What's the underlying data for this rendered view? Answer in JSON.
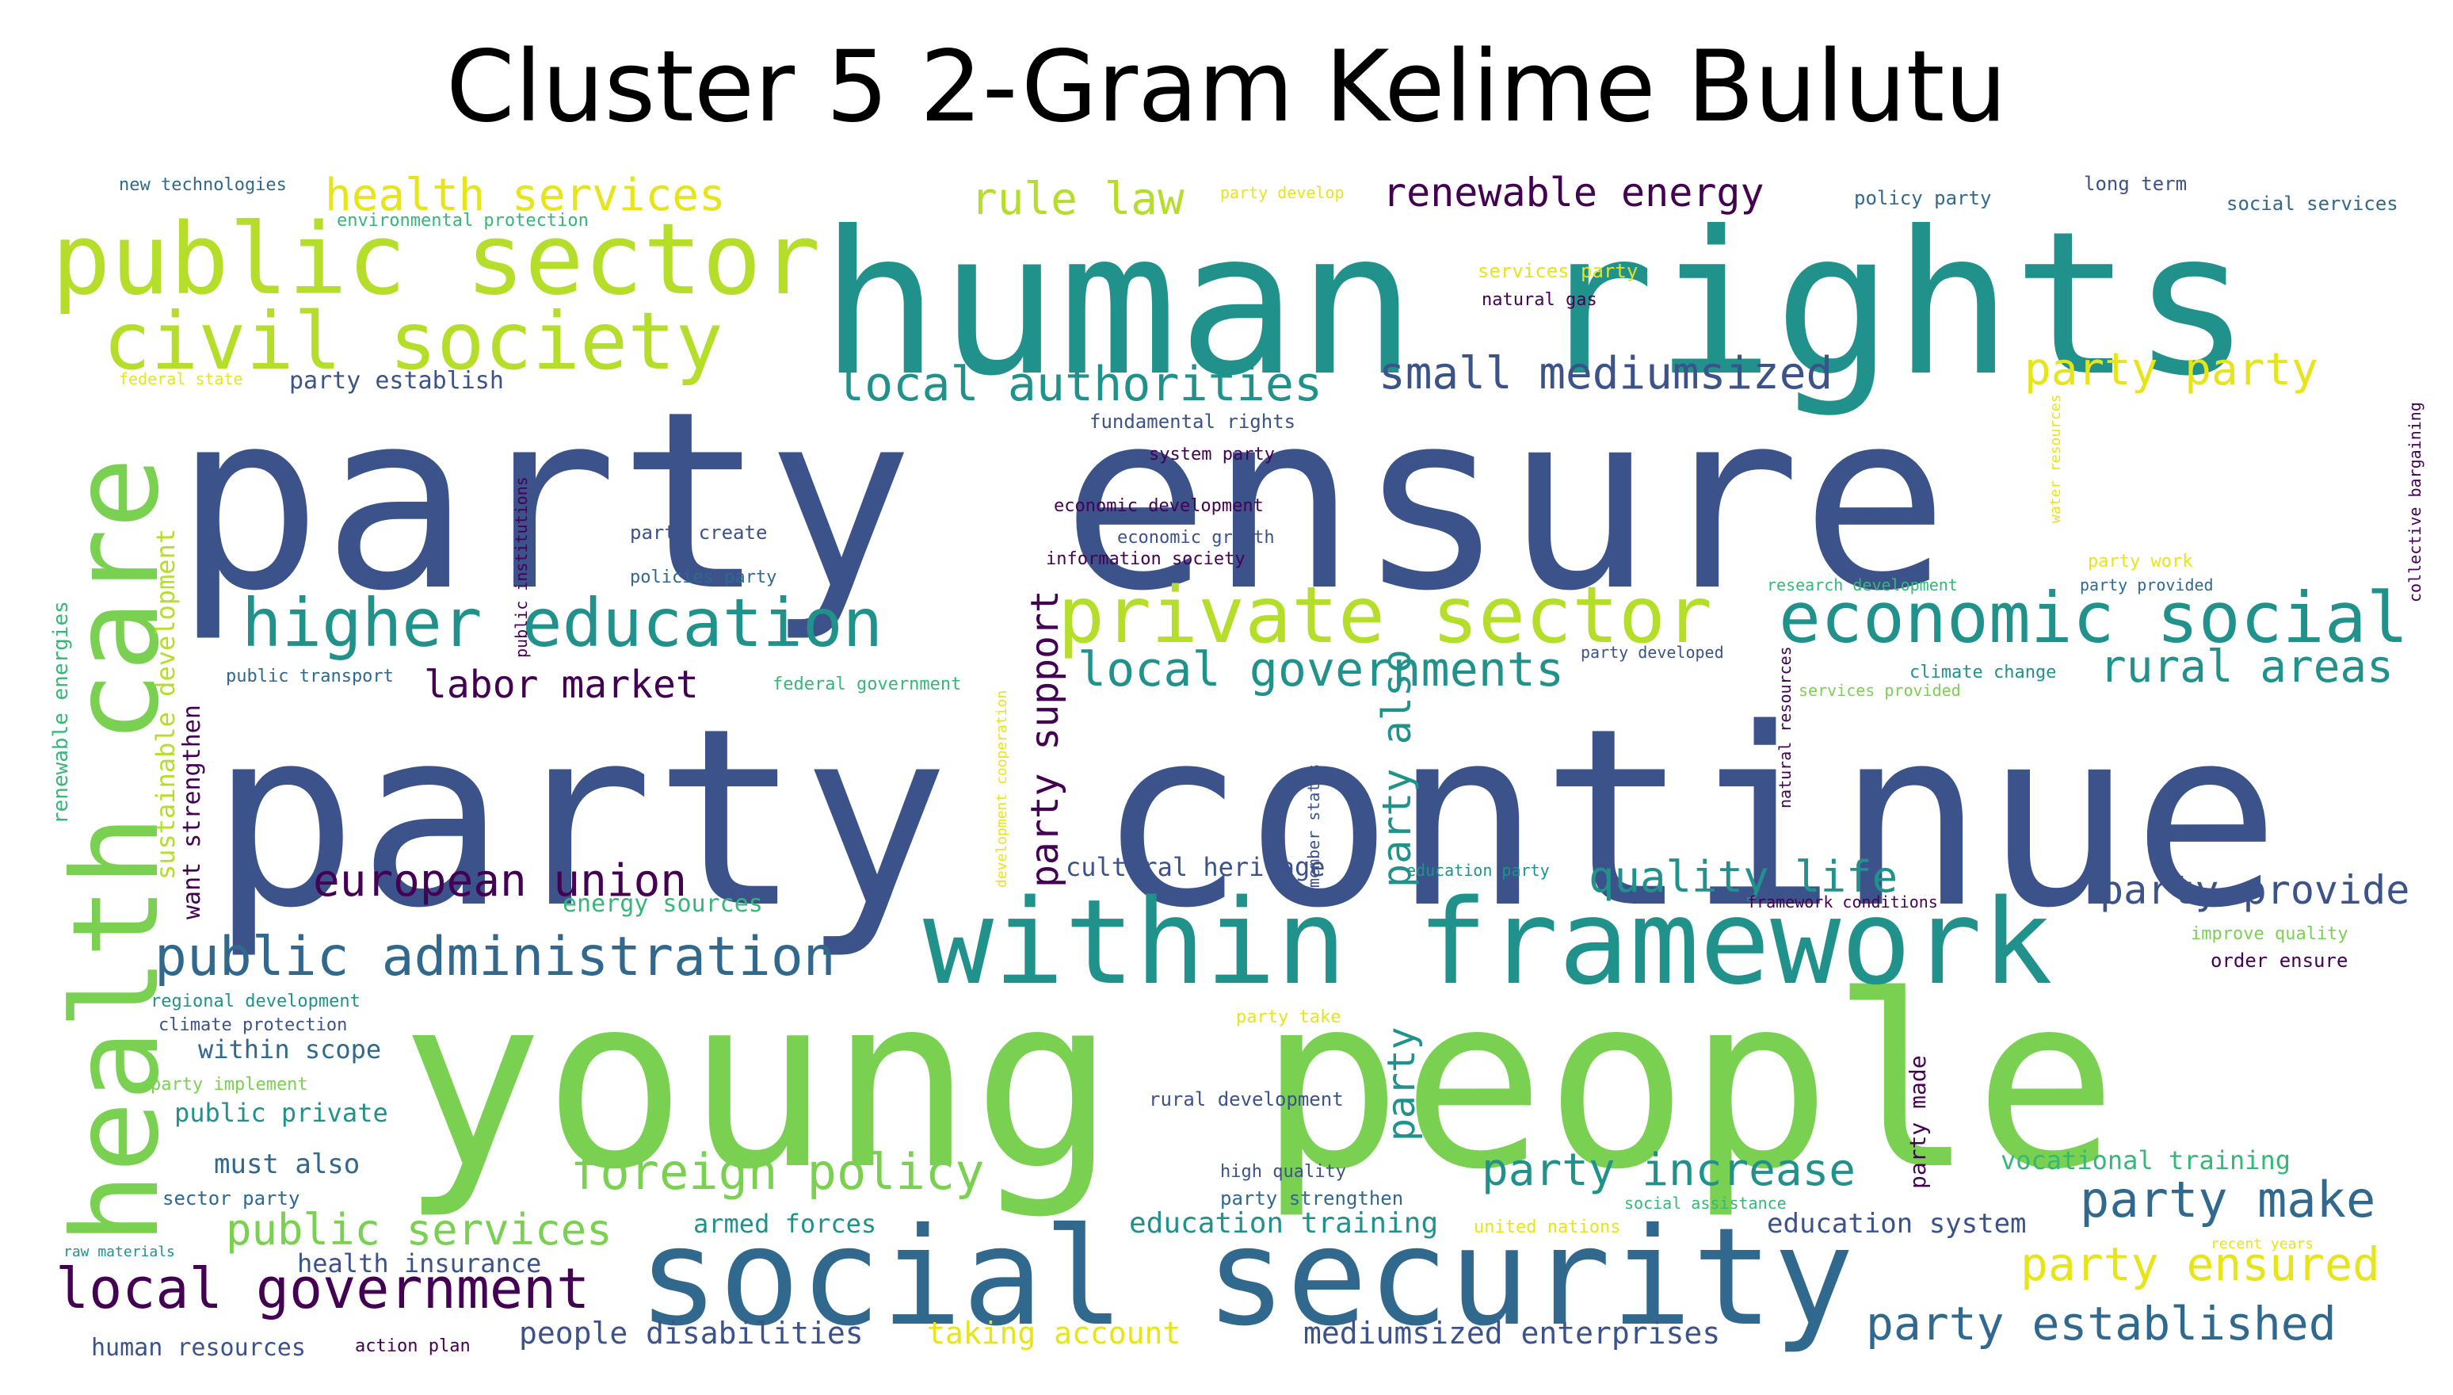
{
  "title": "Cluster 5 2-Gram Kelime Bulutu",
  "palette": {
    "dark_purple": "#440154",
    "indigo": "#3b528b",
    "blue": "#31688e",
    "teal": "#21918c",
    "green_teal": "#35b779",
    "green": "#7ad151",
    "lime": "#b5de2b",
    "yellow": "#e7e419"
  },
  "words": [
    {
      "text": "party ensure",
      "color": "indigo"
    },
    {
      "text": "party continue",
      "color": "indigo"
    },
    {
      "text": "young people",
      "color": "green"
    },
    {
      "text": "human rights",
      "color": "teal"
    },
    {
      "text": "within framework",
      "color": "teal"
    },
    {
      "text": "social security",
      "color": "blue"
    },
    {
      "text": "health care",
      "color": "green"
    },
    {
      "text": "public sector",
      "color": "lime"
    },
    {
      "text": "civil society",
      "color": "lime"
    },
    {
      "text": "private sector",
      "color": "lime"
    },
    {
      "text": "economic social",
      "color": "teal"
    },
    {
      "text": "higher education",
      "color": "teal"
    },
    {
      "text": "public administration",
      "color": "blue"
    },
    {
      "text": "local authorities",
      "color": "teal"
    },
    {
      "text": "local governments",
      "color": "teal"
    },
    {
      "text": "local government",
      "color": "dark_purple"
    },
    {
      "text": "foreign policy",
      "color": "green"
    },
    {
      "text": "renewable energy",
      "color": "dark_purple"
    },
    {
      "text": "small mediumsized",
      "color": "indigo"
    },
    {
      "text": "health services",
      "color": "yellow"
    },
    {
      "text": "rule law",
      "color": "lime"
    },
    {
      "text": "party party",
      "color": "yellow"
    },
    {
      "text": "european union",
      "color": "dark_purple"
    },
    {
      "text": "quality life",
      "color": "teal"
    },
    {
      "text": "party provide",
      "color": "indigo"
    },
    {
      "text": "party increase",
      "color": "teal"
    },
    {
      "text": "party make",
      "color": "blue"
    },
    {
      "text": "party ensured",
      "color": "yellow"
    },
    {
      "text": "party established",
      "color": "blue"
    },
    {
      "text": "rural areas",
      "color": "teal"
    },
    {
      "text": "labor market",
      "color": "dark_purple"
    },
    {
      "text": "public services",
      "color": "green"
    },
    {
      "text": "party support",
      "color": "dark_purple"
    },
    {
      "text": "party also",
      "color": "teal"
    },
    {
      "text": "party",
      "color": "teal"
    },
    {
      "text": "cultural heritage",
      "color": "indigo"
    },
    {
      "text": "sustainable development",
      "color": "lime"
    },
    {
      "text": "want strengthen",
      "color": "dark_purple"
    },
    {
      "text": "renewable energies",
      "color": "green_teal"
    },
    {
      "text": "party made",
      "color": "dark_purple"
    },
    {
      "text": "party establish",
      "color": "indigo"
    },
    {
      "text": "education training",
      "color": "teal"
    },
    {
      "text": "education system",
      "color": "indigo"
    },
    {
      "text": "vocational training",
      "color": "green_teal"
    },
    {
      "text": "armed forces",
      "color": "teal"
    },
    {
      "text": "health insurance",
      "color": "indigo"
    },
    {
      "text": "human resources",
      "color": "indigo"
    },
    {
      "text": "people disabilities",
      "color": "indigo"
    },
    {
      "text": "taking account",
      "color": "yellow"
    },
    {
      "text": "mediumsized enterprises",
      "color": "indigo"
    },
    {
      "text": "must also",
      "color": "blue"
    },
    {
      "text": "within scope",
      "color": "blue"
    },
    {
      "text": "public private",
      "color": "teal"
    },
    {
      "text": "energy sources",
      "color": "green_teal"
    },
    {
      "text": "new technologies",
      "color": "blue"
    },
    {
      "text": "environmental protection",
      "color": "green_teal"
    },
    {
      "text": "federal state",
      "color": "yellow"
    },
    {
      "text": "party develop",
      "color": "yellow"
    },
    {
      "text": "policy party",
      "color": "blue"
    },
    {
      "text": "long term",
      "color": "indigo"
    },
    {
      "text": "social services",
      "color": "blue"
    },
    {
      "text": "services party",
      "color": "yellow"
    },
    {
      "text": "natural gas",
      "color": "dark_purple"
    },
    {
      "text": "fundamental rights",
      "color": "indigo"
    },
    {
      "text": "system party",
      "color": "dark_purple"
    },
    {
      "text": "economic development",
      "color": "dark_purple"
    },
    {
      "text": "party create",
      "color": "indigo"
    },
    {
      "text": "economic growth",
      "color": "indigo"
    },
    {
      "text": "information society",
      "color": "dark_purple"
    },
    {
      "text": "policies party",
      "color": "blue"
    },
    {
      "text": "public institutions",
      "color": "dark_purple"
    },
    {
      "text": "party work",
      "color": "yellow"
    },
    {
      "text": "party provided",
      "color": "blue"
    },
    {
      "text": "research development",
      "color": "green_teal"
    },
    {
      "text": "collective bargaining",
      "color": "dark_purple"
    },
    {
      "text": "water resources",
      "color": "yellow"
    },
    {
      "text": "party developed",
      "color": "indigo"
    },
    {
      "text": "public transport",
      "color": "blue"
    },
    {
      "text": "federal government",
      "color": "green_teal"
    },
    {
      "text": "climate change",
      "color": "teal"
    },
    {
      "text": "services provided",
      "color": "green"
    },
    {
      "text": "development cooperation",
      "color": "yellow"
    },
    {
      "text": "member states",
      "color": "indigo"
    },
    {
      "text": "natural resources",
      "color": "dark_purple"
    },
    {
      "text": "education party",
      "color": "teal"
    },
    {
      "text": "framework conditions",
      "color": "dark_purple"
    },
    {
      "text": "improve quality",
      "color": "green"
    },
    {
      "text": "order ensure",
      "color": "dark_purple"
    },
    {
      "text": "regional development",
      "color": "teal"
    },
    {
      "text": "climate protection",
      "color": "indigo"
    },
    {
      "text": "party take",
      "color": "yellow"
    },
    {
      "text": "party implement",
      "color": "green"
    },
    {
      "text": "rural development",
      "color": "indigo"
    },
    {
      "text": "high quality",
      "color": "indigo"
    },
    {
      "text": "party strengthen",
      "color": "blue"
    },
    {
      "text": "sector party",
      "color": "blue"
    },
    {
      "text": "social assistance",
      "color": "green_teal"
    },
    {
      "text": "united nations",
      "color": "yellow"
    },
    {
      "text": "recent years",
      "color": "yellow"
    },
    {
      "text": "raw materials",
      "color": "teal"
    },
    {
      "text": "action plan",
      "color": "dark_purple"
    }
  ]
}
